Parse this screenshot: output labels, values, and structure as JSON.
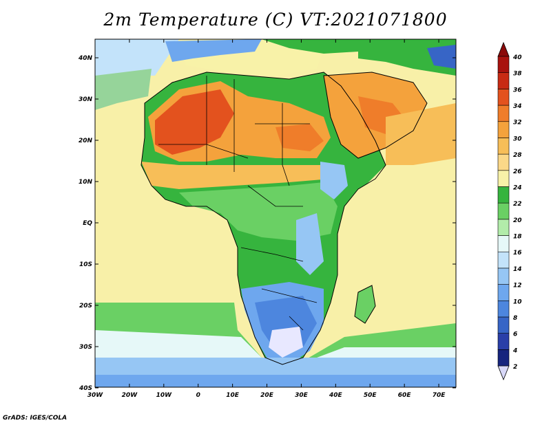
{
  "title": "2m Temperature (C) VT:2021071800",
  "credit": "GrADS: IGES/COLA",
  "lon_labels": [
    "30W",
    "20W",
    "10W",
    "0",
    "10E",
    "20E",
    "30E",
    "40E",
    "50E",
    "60E",
    "70E"
  ],
  "lat_labels": [
    "40N",
    "30N",
    "20N",
    "10N",
    "EQ",
    "10S",
    "20S",
    "30S",
    "40S"
  ],
  "colorbar": {
    "labels": [
      "2",
      "4",
      "6",
      "8",
      "10",
      "12",
      "14",
      "16",
      "18",
      "20",
      "22",
      "24",
      "26",
      "28",
      "30",
      "32",
      "34",
      "36",
      "38",
      "40"
    ],
    "colors": [
      "#d8d8f8",
      "#16247e",
      "#2a3fa8",
      "#3765c6",
      "#4d86de",
      "#6ea7ee",
      "#96c6f4",
      "#c3e3fa",
      "#e6f8f8",
      "#b2ecaa",
      "#6ad064",
      "#36b43e",
      "#f8f2a8",
      "#fbd888",
      "#f7be58",
      "#f4a23c",
      "#ef7d2a",
      "#e3521e",
      "#c82b14",
      "#a8120e",
      "#8a0a0a"
    ]
  },
  "map": {
    "region": "Africa and Middle East",
    "lon_range": [
      -30,
      75
    ],
    "lat_range": [
      -40,
      45
    ],
    "palette": {
      "ocean": "#f8f0a8",
      "coast_border": "#000000"
    }
  }
}
